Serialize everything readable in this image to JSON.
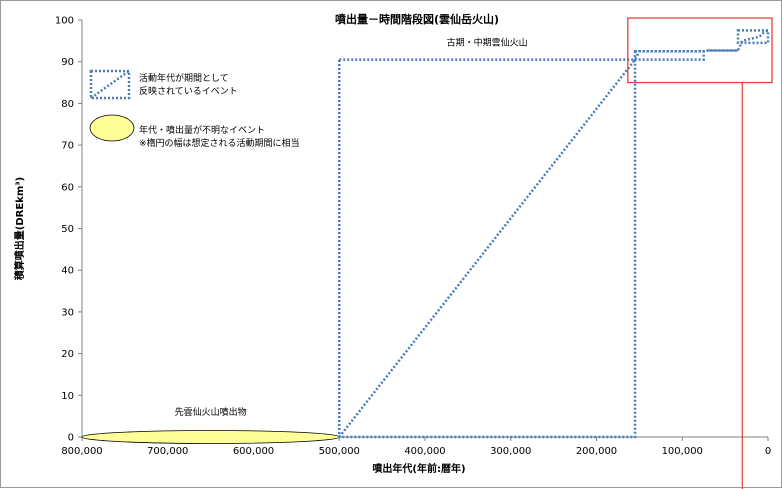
{
  "chart_data": {
    "type": "line",
    "title": "噴出量－時間階段図(雲仙岳火山)",
    "xlabel": "噴出年代(年前:暦年)",
    "ylabel": "積算噴出量(DREkm³)",
    "xlim": [
      800000,
      0
    ],
    "ylim": [
      0,
      100
    ],
    "x_reversed": true,
    "x_ticks": [
      800000,
      700000,
      600000,
      500000,
      400000,
      300000,
      200000,
      100000,
      0
    ],
    "x_tick_labels": [
      "800,000",
      "700,000",
      "600,000",
      "500,000",
      "400,000",
      "300,000",
      "200,000",
      "100,000",
      "0"
    ],
    "y_ticks": [
      0,
      10,
      20,
      30,
      40,
      50,
      60,
      70,
      80,
      90,
      100
    ],
    "y_tick_labels": [
      "0",
      "10",
      "20",
      "30",
      "40",
      "50",
      "60",
      "70",
      "80",
      "90",
      "100"
    ],
    "grid": false,
    "series": [
      {
        "style": "dotted",
        "color": "#4a7ebb",
        "x": [
          500000,
          155000,
          150000,
          75000,
          70000,
          35000,
          30000,
          20000,
          10000,
          5000,
          0
        ],
        "y": [
          0,
          90.5,
          92.5,
          92.5,
          92.7,
          92.7,
          95,
          95.5,
          96,
          97,
          97.5
        ]
      }
    ],
    "event_boxes": [
      {
        "label": "古期・中期雲仙火山",
        "x_start": 500000,
        "x_end": 155000,
        "y_bottom": 0,
        "y_top": 90.5,
        "color": "#4a7ebb"
      },
      {
        "x_start": 155000,
        "x_end": 75000,
        "y_bottom": 90.5,
        "y_top": 92.5,
        "color": "#4a7ebb"
      },
      {
        "x_start": 35000,
        "x_end": 0,
        "y_bottom": 94.5,
        "y_top": 97.5,
        "color": "#4a7ebb"
      }
    ],
    "solid_segments": [
      {
        "x": [
          70000,
          35000
        ],
        "y": [
          92.7,
          92.7
        ],
        "color": "#4a7ebb"
      }
    ],
    "ellipse_events": [
      {
        "label": "先雲仙火山噴出物",
        "x_start": 800000,
        "x_end": 500000,
        "y": 0,
        "color": "#ffff99"
      }
    ],
    "legend": {
      "placement": "top-left",
      "items": [
        {
          "symbol": "dotted-box",
          "label_lines": [
            "活動年代が期間として",
            "反映されているイベント"
          ]
        },
        {
          "symbol": "ellipse",
          "label_lines": [
            "年代・噴出量が不明なイベント",
            "※楕円の幅は想定される活動期間に相当"
          ]
        }
      ]
    },
    "highlight_box": {
      "color": "#e8413c",
      "x_start": 160000,
      "x_end": 0,
      "y_bottom": 85,
      "y_top": 100
    },
    "highlight_line": {
      "color": "#e8413c",
      "x": 30000
    }
  }
}
